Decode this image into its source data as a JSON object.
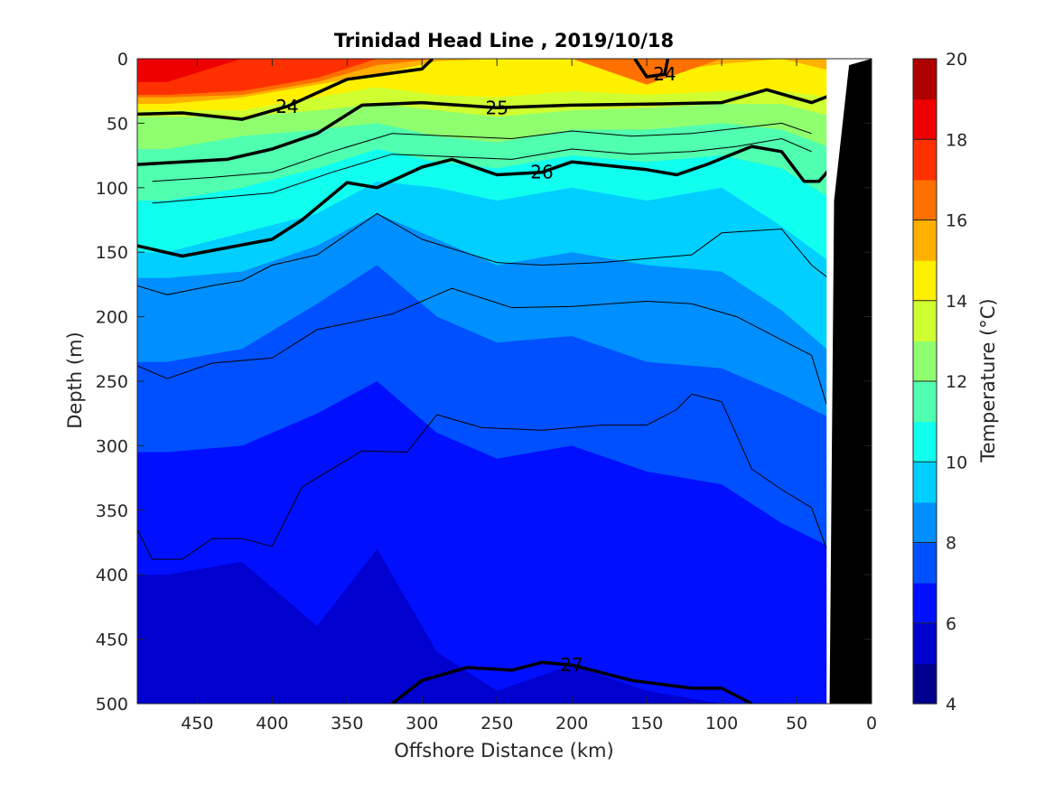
{
  "chart_data": {
    "type": "heatmap",
    "subtype": "filled-contour section with density contour overlay",
    "title": "Trinidad Head Line , 2019/10/18",
    "xlabel": "Offshore Distance (km)",
    "ylabel": "Depth (m)",
    "xlim": [
      490,
      0
    ],
    "x_reversed": true,
    "ylim": [
      0,
      500
    ],
    "y_reversed": true,
    "xticks": [
      "450",
      "400",
      "350",
      "300",
      "250",
      "200",
      "150",
      "100",
      "50",
      "0"
    ],
    "yticks": [
      "0",
      "50",
      "100",
      "150",
      "200",
      "250",
      "300",
      "350",
      "400",
      "450",
      "500"
    ],
    "colorbar": {
      "label": "Temperature (°C)",
      "range": [
        4,
        20
      ],
      "step": 1,
      "tick_labels": [
        "4",
        "6",
        "8",
        "10",
        "12",
        "14",
        "16",
        "18",
        "20"
      ],
      "colors": [
        "#00008f",
        "#0000cf",
        "#0010ff",
        "#0050ff",
        "#008fff",
        "#00cfff",
        "#10ffef",
        "#50ffaf",
        "#8fff70",
        "#cfff30",
        "#fff000",
        "#ffb000",
        "#ff7000",
        "#ff3000",
        "#ef0000",
        "#af0000"
      ]
    },
    "temperature_profile": {
      "x": [
        470,
        420,
        370,
        330,
        290,
        250,
        200,
        150,
        100,
        60,
        25
      ],
      "isotherm_depths": [
        {
          "t": 5,
          "depth": [
            500,
            500,
            500,
            500,
            500,
            500,
            500,
            500,
            500,
            500,
            500
          ]
        },
        {
          "t": 6,
          "depth": [
            400,
            390,
            440,
            380,
            460,
            490,
            470,
            490,
            500,
            500,
            500
          ]
        },
        {
          "t": 7,
          "depth": [
            305,
            300,
            275,
            250,
            290,
            310,
            300,
            320,
            330,
            360,
            380
          ]
        },
        {
          "t": 8,
          "depth": [
            235,
            225,
            190,
            160,
            200,
            220,
            215,
            235,
            240,
            260,
            280
          ]
        },
        {
          "t": 9,
          "depth": [
            170,
            165,
            145,
            120,
            140,
            160,
            150,
            160,
            165,
            195,
            230
          ]
        },
        {
          "t": 10,
          "depth": [
            150,
            135,
            120,
            95,
            100,
            110,
            100,
            110,
            100,
            130,
            160
          ]
        },
        {
          "t": 11,
          "depth": [
            110,
            100,
            85,
            70,
            80,
            85,
            75,
            80,
            75,
            85,
            110
          ]
        },
        {
          "t": 12,
          "depth": [
            70,
            60,
            55,
            50,
            60,
            65,
            55,
            55,
            50,
            55,
            70
          ]
        },
        {
          "t": 13,
          "depth": [
            45,
            45,
            40,
            35,
            40,
            45,
            40,
            38,
            35,
            35,
            45
          ]
        },
        {
          "t": 14,
          "depth": [
            40,
            40,
            30,
            22,
            28,
            30,
            25,
            28,
            25,
            25,
            30
          ]
        },
        {
          "t": 15,
          "depth": [
            35,
            30,
            20,
            12,
            2,
            0,
            0,
            12,
            4,
            0,
            10
          ]
        },
        {
          "t": 16,
          "depth": [
            30,
            28,
            18,
            5,
            0,
            0,
            0,
            20,
            0,
            0,
            0
          ]
        },
        {
          "t": 17,
          "depth": [
            28,
            25,
            15,
            0,
            0,
            0,
            0,
            0,
            0,
            0,
            0
          ]
        },
        {
          "t": 18,
          "depth": [
            18,
            0,
            0,
            0,
            0,
            0,
            0,
            0,
            0,
            0,
            0
          ]
        }
      ]
    },
    "density_contours": {
      "labeled": [
        {
          "level": "24",
          "x": [
            490,
            460,
            420,
            390,
            350,
            300,
            293
          ],
          "depth": [
            43,
            42,
            47,
            37,
            16,
            8,
            0
          ]
        },
        {
          "level": "24",
          "x": [
            158,
            150,
            138,
            136
          ],
          "depth": [
            0,
            14,
            12,
            0
          ]
        },
        {
          "level": "25",
          "x": [
            490,
            430,
            400,
            370,
            340,
            300,
            250,
            200,
            140,
            100,
            70,
            40,
            20
          ],
          "depth": [
            82,
            78,
            70,
            58,
            36,
            34,
            38,
            36,
            35,
            34,
            24,
            34,
            25
          ]
        },
        {
          "level": "26",
          "x": [
            490,
            460,
            400,
            380,
            350,
            330,
            300,
            280,
            250,
            220,
            200,
            150,
            130,
            110,
            80,
            60,
            45,
            35,
            20
          ],
          "depth": [
            145,
            153,
            140,
            125,
            96,
            100,
            84,
            78,
            90,
            88,
            80,
            86,
            90,
            82,
            68,
            72,
            95,
            95,
            75
          ]
        },
        {
          "level": "27",
          "x": [
            320,
            300,
            270,
            240,
            220,
            200,
            160,
            120,
            100,
            80
          ],
          "depth": [
            500,
            482,
            472,
            474,
            468,
            470,
            482,
            488,
            488,
            500
          ]
        }
      ],
      "unlabeled": [
        {
          "x": [
            490,
            470,
            440,
            420,
            400,
            370,
            330,
            300,
            250,
            220,
            180,
            150,
            120,
            100,
            60,
            40,
            20
          ],
          "depth": [
            176,
            183,
            176,
            172,
            160,
            152,
            120,
            140,
            158,
            160,
            158,
            155,
            152,
            135,
            132,
            160,
            178
          ]
        },
        {
          "x": [
            490,
            470,
            440,
            400,
            370,
            320,
            280,
            240,
            200,
            150,
            120,
            90,
            60,
            40,
            30
          ],
          "depth": [
            238,
            248,
            236,
            232,
            210,
            198,
            178,
            193,
            192,
            188,
            190,
            200,
            218,
            230,
            268
          ]
        },
        {
          "x": [
            490,
            480,
            460,
            440,
            420,
            400,
            380,
            340,
            310,
            290,
            260,
            220,
            180,
            150,
            130,
            120,
            100,
            80,
            60,
            40,
            30
          ],
          "depth": [
            365,
            388,
            388,
            372,
            372,
            378,
            332,
            304,
            305,
            276,
            286,
            288,
            284,
            284,
            272,
            260,
            266,
            318,
            334,
            348,
            380
          ]
        },
        {
          "x": [
            480,
            440,
            400,
            360,
            320,
            280,
            240,
            200,
            160,
            120,
            90,
            60,
            40
          ],
          "depth": [
            95,
            92,
            88,
            72,
            58,
            60,
            62,
            56,
            60,
            58,
            54,
            50,
            58
          ]
        },
        {
          "x": [
            480,
            440,
            400,
            360,
            320,
            280,
            240,
            200,
            160,
            120,
            90,
            60,
            40
          ],
          "depth": [
            112,
            108,
            104,
            88,
            74,
            76,
            78,
            70,
            74,
            72,
            68,
            62,
            72
          ]
        }
      ]
    },
    "bathymetry": {
      "x": [
        28,
        25,
        15,
        0
      ],
      "depth": [
        500,
        110,
        5,
        0
      ]
    },
    "nodata_x_km": [
      30,
      0
    ]
  }
}
